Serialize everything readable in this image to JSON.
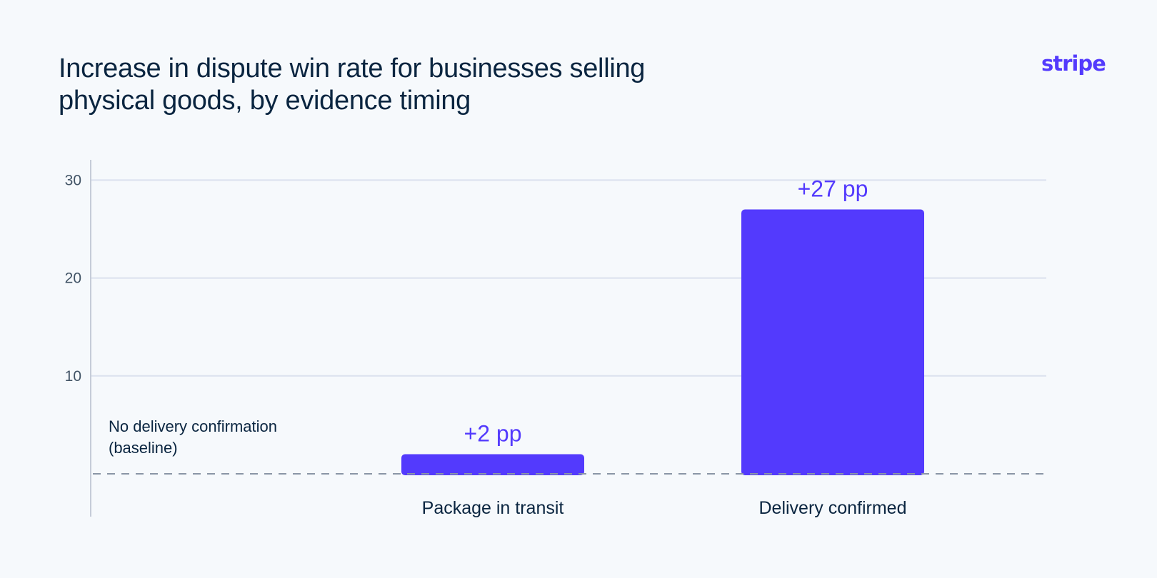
{
  "logo_text": "stripe",
  "colors": {
    "bar": "#533afd",
    "grid": "#dbe1ee",
    "axis": "#c5ccd8",
    "baseline": "#8a96a6",
    "text": "#0a2540",
    "muted": "#425466",
    "background": "#f6f9fc"
  },
  "chart_data": {
    "type": "bar",
    "title": "Increase in dispute win rate for businesses selling physical goods, by evidence timing",
    "categories": [
      "Package in transit",
      "Delivery confirmed"
    ],
    "values": [
      2,
      27
    ],
    "data_labels": [
      "+2 pp",
      "+27 pp"
    ],
    "baseline_label_lines": [
      "No delivery confirmation",
      "(baseline)"
    ],
    "yticks": [
      10,
      20,
      30
    ],
    "ylim": [
      0,
      32.5
    ],
    "grid": true,
    "legend": "none"
  }
}
